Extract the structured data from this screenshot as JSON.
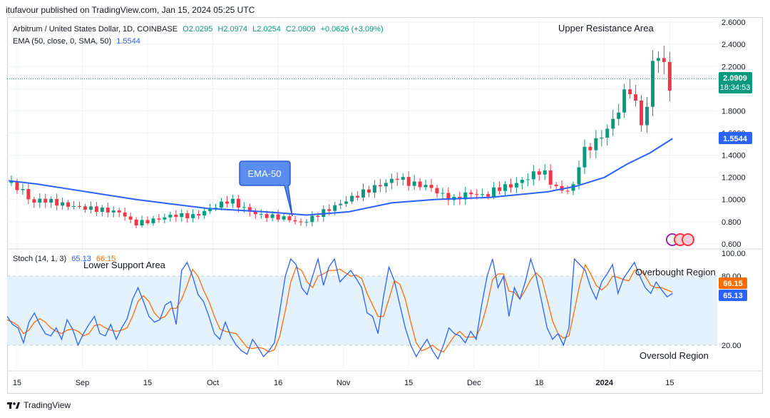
{
  "header": {
    "text": "itufavour published on TradingView.com, Jan 15, 2024 05:25 UTC"
  },
  "legend": {
    "symbol": "Arbitrum / United States Dollar, 1D, COINBASE",
    "open": "O2.0295",
    "high": "H2.0974",
    "low": "L2.0254",
    "close": "C2.0909",
    "change": "+0.0626 (+3.09%)",
    "ema_label": "EMA (50, close, 0, SMA, 50)",
    "ema_value": "1.5544",
    "stoch_label": "Stoch (14, 1, 3)",
    "stoch_k": "65.13",
    "stoch_d": "66.15"
  },
  "annotations": {
    "upper_resistance": "Upper Resistance Area",
    "ema_callout": "EMA-50",
    "lower_support": "Lower Support Area",
    "overbought": "Overbought Region",
    "oversold": "Oversold Region"
  },
  "price_tag": {
    "price": "2.0909",
    "countdown": "18:34:53"
  },
  "colors": {
    "up": "#089981",
    "down": "#f23645",
    "ema": "#2962ff",
    "k": "#2962ff",
    "d": "#ff6d00",
    "band": "#e3f2fd"
  },
  "footer": {
    "brand": "TradingView"
  },
  "chart_data": [
    {
      "type": "candlestick",
      "title": "Arbitrum / United States Dollar, 1D, COINBASE",
      "x_ticks": [
        "15",
        "Sep",
        "15",
        "Oct",
        "16",
        "Nov",
        "15",
        "Dec",
        "18",
        "2024",
        "15"
      ],
      "y_ticks": [
        "0.600",
        "0.800",
        "1.0000",
        "1.2000",
        "1.4000",
        "1.6000",
        "1.8000",
        "2.0000",
        "2.2000",
        "2.4000",
        "2.6000"
      ],
      "ylim": [
        0.58,
        2.62
      ],
      "close_path": [
        {
          "day": 0,
          "close": 1.15
        },
        {
          "day": 5,
          "close": 1.08
        },
        {
          "day": 8,
          "close": 0.97
        },
        {
          "day": 12,
          "close": 1.0
        },
        {
          "day": 20,
          "close": 0.95
        },
        {
          "day": 28,
          "close": 0.92
        },
        {
          "day": 35,
          "close": 0.9
        },
        {
          "day": 40,
          "close": 0.88
        },
        {
          "day": 44,
          "close": 0.78
        },
        {
          "day": 52,
          "close": 0.82
        },
        {
          "day": 58,
          "close": 0.86
        },
        {
          "day": 65,
          "close": 0.85
        },
        {
          "day": 70,
          "close": 0.9
        },
        {
          "day": 74,
          "close": 0.95
        },
        {
          "day": 78,
          "close": 1.0
        },
        {
          "day": 82,
          "close": 0.93
        },
        {
          "day": 88,
          "close": 0.86
        },
        {
          "day": 95,
          "close": 0.84
        },
        {
          "day": 100,
          "close": 0.82
        },
        {
          "day": 102,
          "close": 0.78
        },
        {
          "day": 106,
          "close": 0.82
        },
        {
          "day": 110,
          "close": 0.88
        },
        {
          "day": 116,
          "close": 0.95
        },
        {
          "day": 122,
          "close": 1.03
        },
        {
          "day": 128,
          "close": 1.1
        },
        {
          "day": 133,
          "close": 1.15
        },
        {
          "day": 137,
          "close": 1.2
        },
        {
          "day": 142,
          "close": 1.14
        },
        {
          "day": 148,
          "close": 1.12
        },
        {
          "day": 152,
          "close": 1.05
        },
        {
          "day": 157,
          "close": 1.0
        },
        {
          "day": 162,
          "close": 1.06
        },
        {
          "day": 168,
          "close": 1.03
        },
        {
          "day": 172,
          "close": 1.1
        },
        {
          "day": 178,
          "close": 1.13
        },
        {
          "day": 183,
          "close": 1.2
        },
        {
          "day": 188,
          "close": 1.27
        },
        {
          "day": 192,
          "close": 1.12
        },
        {
          "day": 196,
          "close": 1.07
        },
        {
          "day": 199,
          "close": 1.12
        },
        {
          "day": 202,
          "close": 1.42
        },
        {
          "day": 206,
          "close": 1.5
        },
        {
          "day": 210,
          "close": 1.6
        },
        {
          "day": 214,
          "close": 1.75
        },
        {
          "day": 217,
          "close": 1.95
        },
        {
          "day": 219,
          "close": 2.0
        },
        {
          "day": 221,
          "close": 1.85
        },
        {
          "day": 223,
          "close": 1.7
        },
        {
          "day": 225,
          "close": 1.82
        },
        {
          "day": 227,
          "close": 2.25
        },
        {
          "day": 229,
          "close": 2.3
        },
        {
          "day": 231,
          "close": 2.2
        },
        {
          "day": 233,
          "close": 2.03
        },
        {
          "day": 234,
          "close": 2.09
        }
      ],
      "ema50": [
        {
          "day": 0,
          "value": 1.17
        },
        {
          "day": 10,
          "value": 1.14
        },
        {
          "day": 25,
          "value": 1.08
        },
        {
          "day": 45,
          "value": 1.0
        },
        {
          "day": 70,
          "value": 0.92
        },
        {
          "day": 90,
          "value": 0.89
        },
        {
          "day": 105,
          "value": 0.86
        },
        {
          "day": 120,
          "value": 0.89
        },
        {
          "day": 135,
          "value": 0.97
        },
        {
          "day": 150,
          "value": 1.0
        },
        {
          "day": 170,
          "value": 1.02
        },
        {
          "day": 190,
          "value": 1.07
        },
        {
          "day": 200,
          "value": 1.12
        },
        {
          "day": 210,
          "value": 1.2
        },
        {
          "day": 218,
          "value": 1.32
        },
        {
          "day": 226,
          "value": 1.42
        },
        {
          "day": 234,
          "value": 1.55
        }
      ]
    },
    {
      "type": "line",
      "title": "Stoch (14, 1, 3)",
      "y_ticks": [
        "20.00",
        "80.00",
        "100.00"
      ],
      "ylim": [
        0,
        100
      ],
      "band": [
        20,
        80
      ],
      "series": [
        {
          "name": "%K",
          "values": [
            45,
            38,
            35,
            22,
            40,
            48,
            38,
            30,
            28,
            35,
            25,
            42,
            34,
            20,
            30,
            38,
            45,
            30,
            28,
            38,
            25,
            35,
            43,
            60,
            70,
            58,
            45,
            40,
            42,
            55,
            58,
            38,
            85,
            92,
            80,
            64,
            58,
            45,
            30,
            25,
            40,
            28,
            20,
            15,
            12,
            25,
            18,
            10,
            15,
            22,
            50,
            80,
            95,
            90,
            70,
            64,
            80,
            95,
            72,
            88,
            95,
            75,
            80,
            85,
            78,
            70,
            48,
            45,
            30,
            62,
            88,
            76,
            55,
            35,
            20,
            10,
            18,
            25,
            15,
            8,
            20,
            35,
            30,
            28,
            22,
            32,
            25,
            55,
            80,
            95,
            70,
            80,
            45,
            70,
            60,
            75,
            95,
            80,
            58,
            35,
            25,
            30,
            20,
            35,
            95,
            90,
            85,
            70,
            60,
            75,
            82,
            90,
            65,
            78,
            85,
            92,
            80,
            70,
            65,
            75,
            68,
            62,
            65
          ]
        },
        {
          "name": "%D",
          "values": [
            42,
            40,
            37,
            30,
            33,
            40,
            43,
            40,
            35,
            32,
            30,
            33,
            34,
            32,
            28,
            30,
            37,
            38,
            35,
            33,
            32,
            33,
            35,
            45,
            58,
            63,
            58,
            48,
            43,
            45,
            52,
            52,
            60,
            72,
            86,
            80,
            68,
            58,
            45,
            34,
            32,
            31,
            30,
            24,
            18,
            17,
            18,
            17,
            14,
            16,
            28,
            50,
            75,
            88,
            85,
            75,
            70,
            80,
            82,
            85,
            85,
            86,
            83,
            80,
            81,
            78,
            65,
            55,
            45,
            45,
            60,
            76,
            73,
            60,
            40,
            22,
            15,
            17,
            20,
            16,
            14,
            21,
            28,
            32,
            27,
            27,
            27,
            38,
            55,
            77,
            82,
            82,
            67,
            66,
            60,
            68,
            77,
            83,
            78,
            60,
            41,
            30,
            26,
            28,
            50,
            73,
            90,
            82,
            72,
            68,
            72,
            80,
            79,
            77,
            76,
            85,
            86,
            80,
            72,
            70,
            70,
            68,
            66
          ]
        }
      ]
    }
  ]
}
